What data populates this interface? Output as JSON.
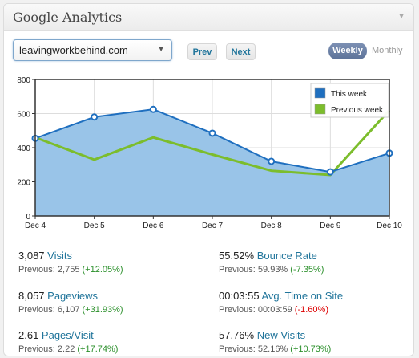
{
  "widget": {
    "title": "Google Analytics",
    "collapse_glyph": "▼"
  },
  "controls": {
    "site": "leavingworkbehind.com",
    "prev_label": "Prev",
    "next_label": "Next",
    "weekly_label": "Weekly",
    "monthly_label": "Monthly"
  },
  "chart_data": {
    "type": "area",
    "categories": [
      "Dec 4",
      "Dec 5",
      "Dec 6",
      "Dec 7",
      "Dec 8",
      "Dec 9",
      "Dec 10"
    ],
    "ylim": [
      0,
      800
    ],
    "yticks": [
      "0",
      "200",
      "400",
      "600",
      "800"
    ],
    "grid": true,
    "legend_position": "top-right",
    "series": [
      {
        "name": "This week",
        "color": "#1f6fbf",
        "fill": "#99c4e8",
        "values": [
          455,
          580,
          625,
          485,
          320,
          258,
          368
        ]
      },
      {
        "name": "Previous week",
        "color": "#7cbd2c",
        "values": [
          460,
          330,
          460,
          360,
          265,
          240,
          620
        ]
      }
    ]
  },
  "stats": [
    {
      "value": "3,087",
      "label": "Visits",
      "prev_text": "Previous: 2,755",
      "change": "(+12.05%)",
      "trend": "pos"
    },
    {
      "value": "55.52%",
      "label": "Bounce Rate",
      "prev_text": "Previous: 59.93%",
      "change": "(-7.35%)",
      "trend": "pos"
    },
    {
      "value": "8,057",
      "label": "Pageviews",
      "prev_text": "Previous: 6,107",
      "change": "(+31.93%)",
      "trend": "pos"
    },
    {
      "value": "00:03:55",
      "label": "Avg. Time on Site",
      "prev_text": "Previous: 00:03:59",
      "change": "(-1.60%)",
      "trend": "neg"
    },
    {
      "value": "2.61",
      "label": "Pages/Visit",
      "prev_text": "Previous: 2.22",
      "change": "(+17.74%)",
      "trend": "pos"
    },
    {
      "value": "57.76%",
      "label": "New Visits",
      "prev_text": "Previous: 52.16%",
      "change": "(+10.73%)",
      "trend": "pos"
    }
  ]
}
